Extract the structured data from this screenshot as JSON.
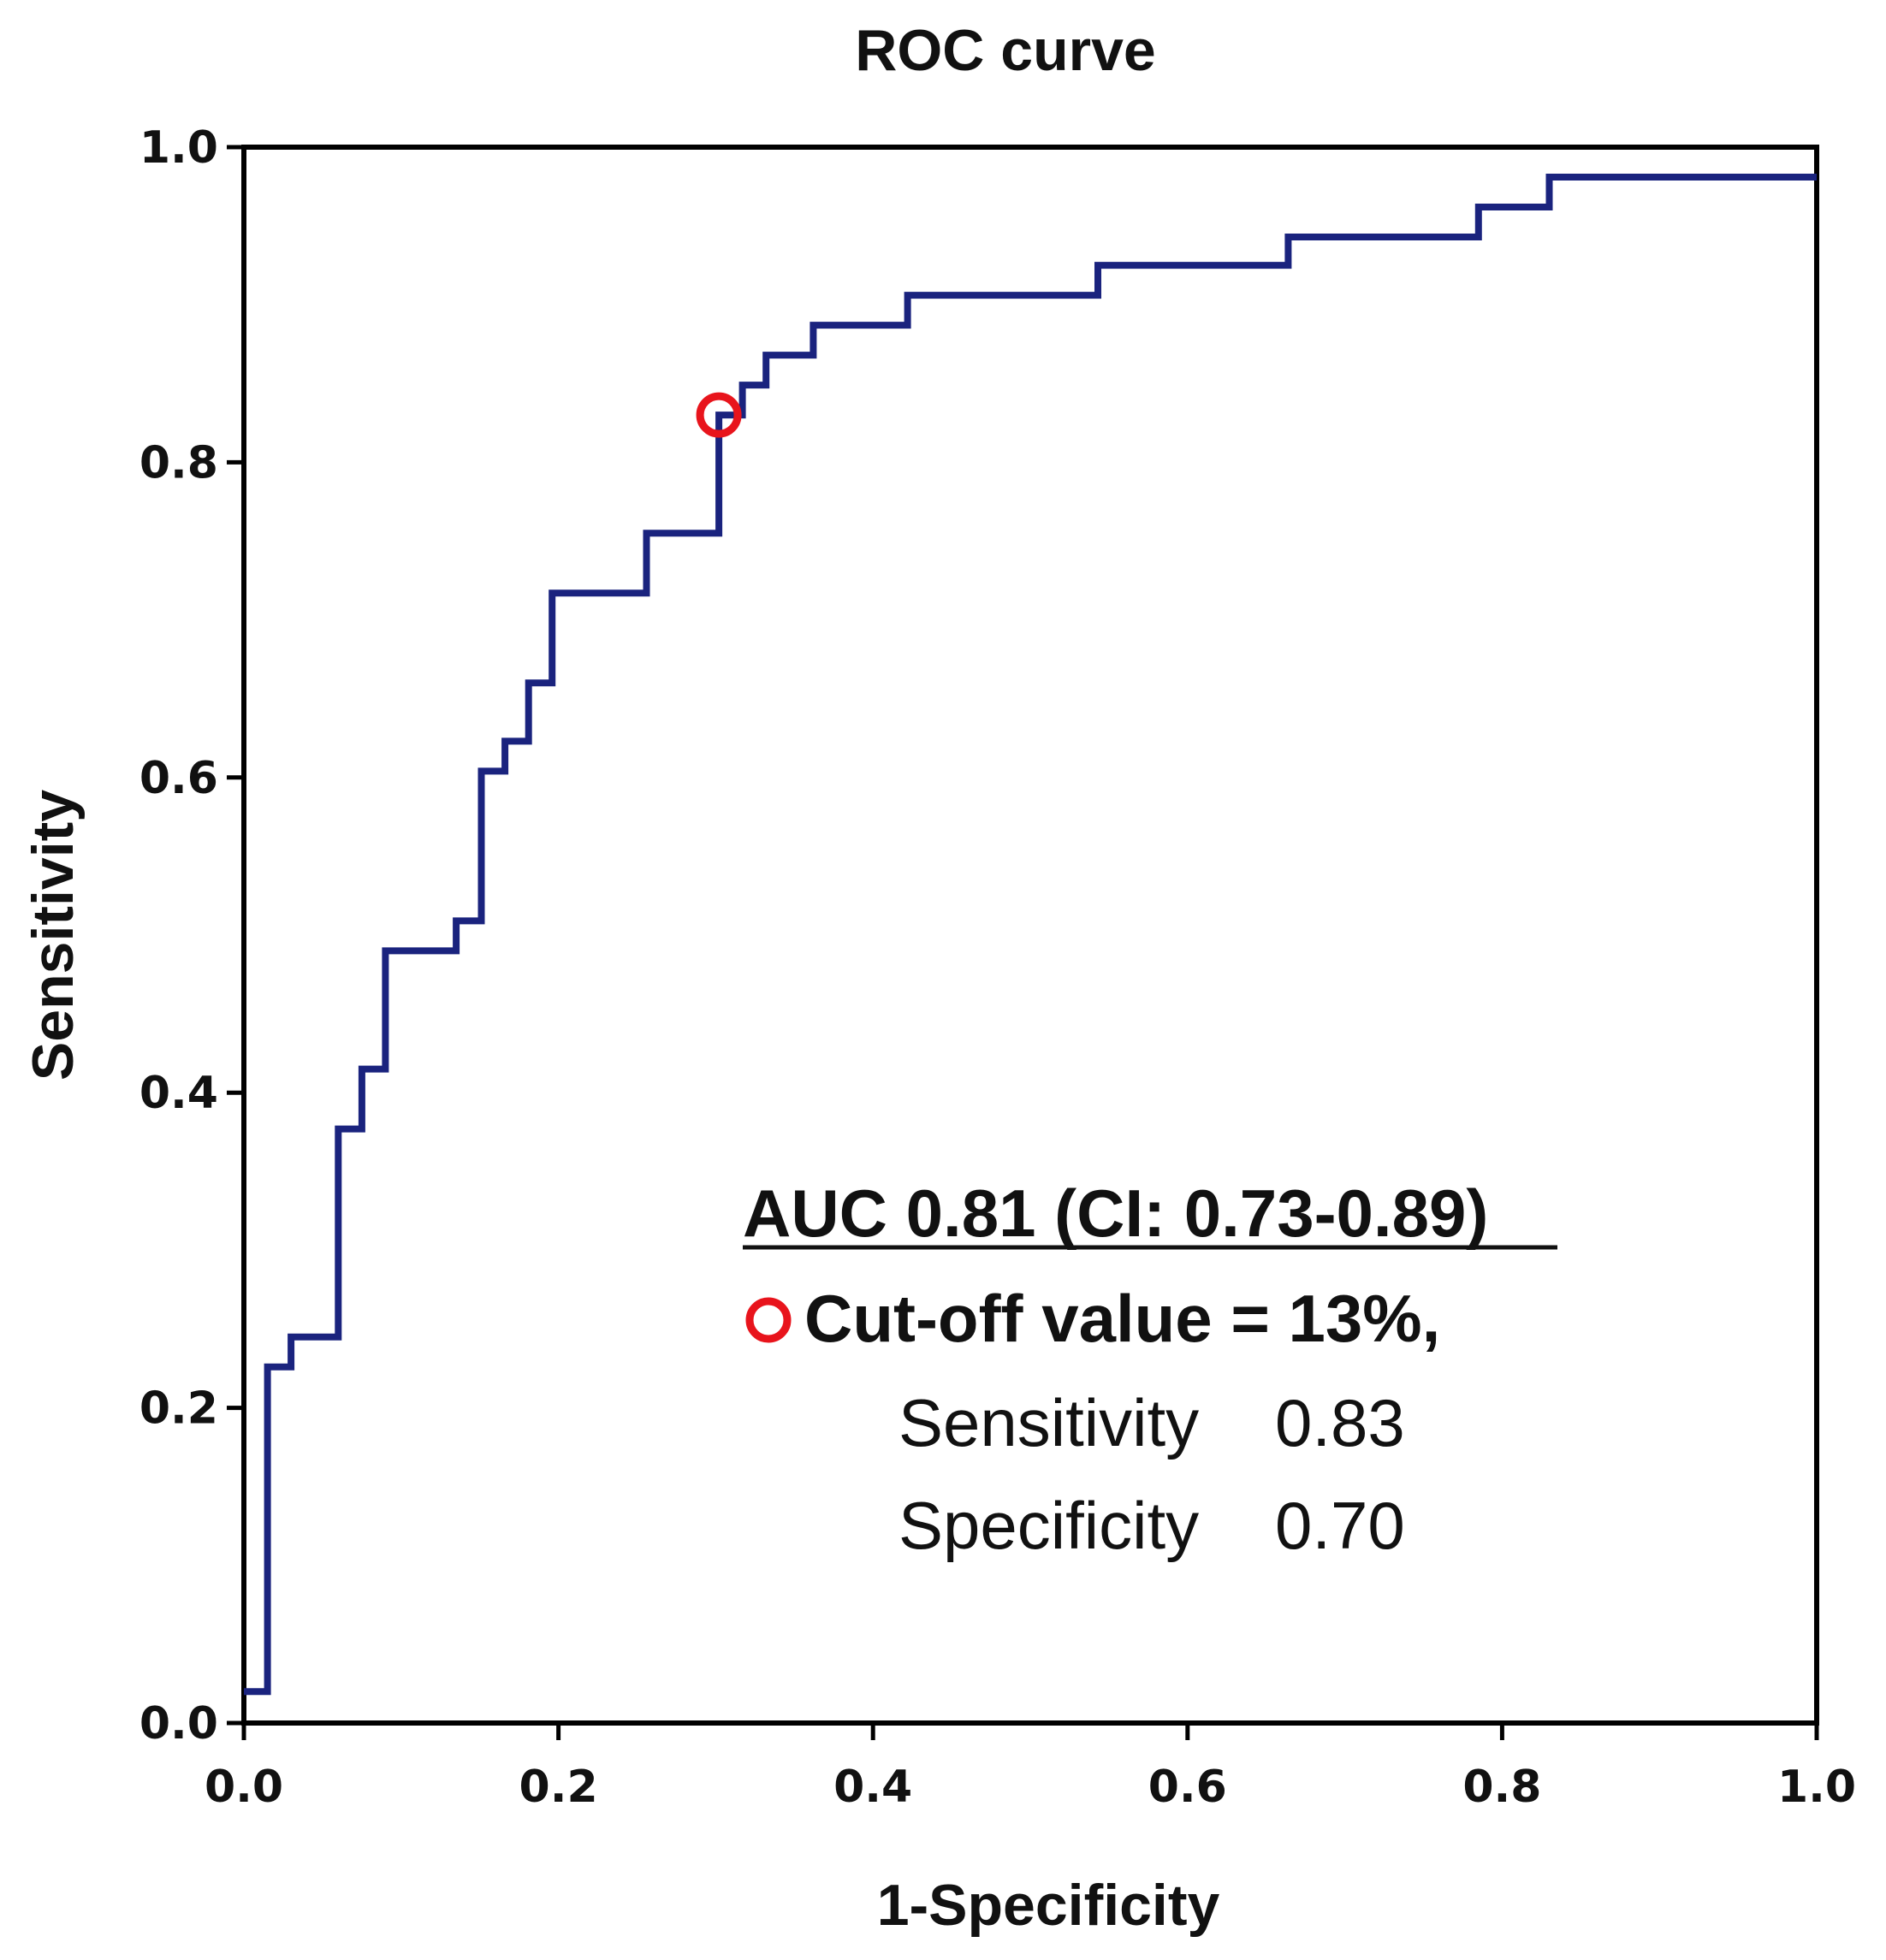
{
  "chart_data": {
    "type": "line",
    "title": "ROC curve",
    "xlabel": "1-Specificity",
    "ylabel": "Sensitivity",
    "xlim": [
      0,
      1
    ],
    "ylim": [
      0,
      1
    ],
    "grid": false,
    "x_ticks": [
      "0.0",
      "0.2",
      "0.4",
      "0.6",
      "0.8",
      "1.0"
    ],
    "y_ticks": [
      "0.0",
      "0.2",
      "0.4",
      "0.6",
      "0.8",
      "1.0"
    ],
    "tick_values": [
      0,
      0.2,
      0.4,
      0.6,
      0.8,
      1.0
    ],
    "series": [
      {
        "name": "ROC",
        "color": "#1a237e",
        "step_points": [
          [
            0.0,
            0.02
          ],
          [
            0.015,
            0.02
          ],
          [
            0.015,
            0.226
          ],
          [
            0.03,
            0.226
          ],
          [
            0.03,
            0.245
          ],
          [
            0.06,
            0.245
          ],
          [
            0.06,
            0.377
          ],
          [
            0.075,
            0.377
          ],
          [
            0.075,
            0.415
          ],
          [
            0.09,
            0.415
          ],
          [
            0.09,
            0.49
          ],
          [
            0.135,
            0.49
          ],
          [
            0.135,
            0.509
          ],
          [
            0.151,
            0.509
          ],
          [
            0.151,
            0.604
          ],
          [
            0.166,
            0.604
          ],
          [
            0.166,
            0.623
          ],
          [
            0.181,
            0.623
          ],
          [
            0.181,
            0.66
          ],
          [
            0.196,
            0.66
          ],
          [
            0.196,
            0.717
          ],
          [
            0.256,
            0.717
          ],
          [
            0.256,
            0.755
          ],
          [
            0.302,
            0.755
          ],
          [
            0.302,
            0.83
          ],
          [
            0.317,
            0.83
          ],
          [
            0.317,
            0.849
          ],
          [
            0.332,
            0.849
          ],
          [
            0.332,
            0.868
          ],
          [
            0.362,
            0.868
          ],
          [
            0.362,
            0.887
          ],
          [
            0.422,
            0.887
          ],
          [
            0.422,
            0.906
          ],
          [
            0.543,
            0.906
          ],
          [
            0.543,
            0.925
          ],
          [
            0.664,
            0.925
          ],
          [
            0.664,
            0.943
          ],
          [
            0.785,
            0.943
          ],
          [
            0.785,
            0.962
          ],
          [
            0.83,
            0.962
          ],
          [
            0.83,
            0.981
          ],
          [
            1.0,
            0.981
          ]
        ]
      }
    ],
    "cutoff_point": {
      "x": 0.302,
      "y": 0.83,
      "color": "#e8141c"
    },
    "annotations": {
      "auc": "AUC 0.81 (CI: 0.73-0.89)",
      "cutoff": "Cut-off value = 13%,",
      "sensitivity_label": "Sensitivity",
      "sensitivity_value": "0.83",
      "specificity_label": "Specificity",
      "specificity_value": "0.70"
    }
  }
}
